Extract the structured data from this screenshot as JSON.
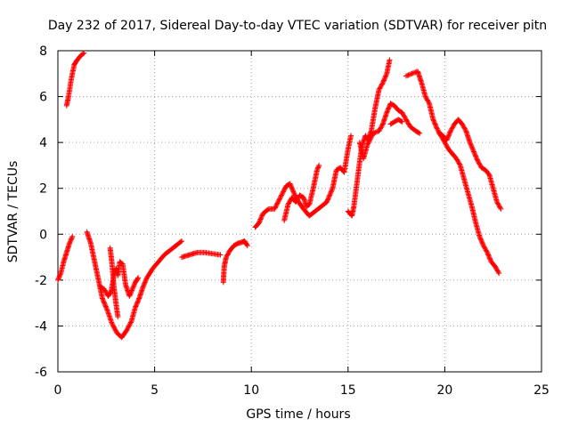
{
  "chart_data": {
    "type": "scatter",
    "title": "Day 232 of 2017, Sidereal Day-to-day VTEC variation (SDTVAR) for receiver pitn",
    "xlabel": "GPS time / hours",
    "ylabel": "SDTVAR / TECUs",
    "xlim": [
      0,
      25
    ],
    "ylim": [
      -6,
      8
    ],
    "xticks": [
      0,
      5,
      10,
      15,
      20,
      25
    ],
    "yticks": [
      -6,
      -4,
      -2,
      0,
      2,
      4,
      6,
      8
    ],
    "grid": true,
    "legend": "none",
    "marker": "plus",
    "color": "#ff0000",
    "segments": [
      [
        [
          0.0,
          -2.0
        ],
        [
          0.15,
          -1.7
        ],
        [
          0.3,
          -1.2
        ],
        [
          0.45,
          -0.8
        ],
        [
          0.6,
          -0.4
        ],
        [
          0.75,
          -0.1
        ]
      ],
      [
        [
          0.45,
          5.6
        ],
        [
          0.55,
          6.0
        ],
        [
          0.7,
          6.8
        ],
        [
          0.85,
          7.4
        ],
        [
          1.0,
          7.6
        ],
        [
          1.2,
          7.8
        ],
        [
          1.35,
          7.9
        ]
      ],
      [
        [
          1.5,
          0.1
        ],
        [
          1.7,
          -0.4
        ],
        [
          1.9,
          -1.2
        ],
        [
          2.1,
          -2.0
        ],
        [
          2.3,
          -2.8
        ],
        [
          2.55,
          -3.3
        ],
        [
          2.8,
          -3.9
        ],
        [
          3.05,
          -4.3
        ],
        [
          3.3,
          -4.5
        ],
        [
          3.55,
          -4.2
        ],
        [
          3.8,
          -3.8
        ],
        [
          4.0,
          -3.2
        ],
        [
          4.2,
          -2.8
        ],
        [
          4.4,
          -2.3
        ],
        [
          4.6,
          -1.9
        ],
        [
          4.9,
          -1.5
        ],
        [
          5.2,
          -1.2
        ],
        [
          5.5,
          -0.9
        ],
        [
          5.8,
          -0.7
        ],
        [
          6.1,
          -0.5
        ],
        [
          6.4,
          -0.3
        ]
      ],
      [
        [
          2.2,
          -2.3
        ],
        [
          2.4,
          -2.4
        ],
        [
          2.6,
          -2.7
        ],
        [
          2.75,
          -2.5
        ],
        [
          2.9,
          -1.8
        ],
        [
          3.0,
          -1.5
        ],
        [
          3.1,
          -1.8
        ],
        [
          3.2,
          -1.2
        ],
        [
          3.35,
          -1.3
        ],
        [
          3.5,
          -2.2
        ],
        [
          3.7,
          -2.7
        ],
        [
          3.85,
          -2.4
        ],
        [
          4.0,
          -2.1
        ],
        [
          4.15,
          -1.9
        ]
      ],
      [
        [
          2.7,
          -0.6
        ],
        [
          2.8,
          -1.3
        ],
        [
          2.9,
          -2.3
        ],
        [
          3.0,
          -3.0
        ],
        [
          3.1,
          -3.6
        ]
      ],
      [
        [
          6.4,
          -1.0
        ],
        [
          6.8,
          -0.9
        ],
        [
          7.2,
          -0.8
        ],
        [
          7.6,
          -0.8
        ],
        [
          8.0,
          -0.85
        ],
        [
          8.4,
          -0.9
        ]
      ],
      [
        [
          8.55,
          -2.1
        ],
        [
          8.6,
          -1.4
        ],
        [
          8.7,
          -1.0
        ],
        [
          8.9,
          -0.7
        ],
        [
          9.1,
          -0.5
        ],
        [
          9.3,
          -0.4
        ],
        [
          9.5,
          -0.35
        ],
        [
          9.65,
          -0.3
        ],
        [
          9.8,
          -0.5
        ]
      ],
      [
        [
          10.2,
          0.3
        ],
        [
          10.4,
          0.5
        ],
        [
          10.6,
          0.9
        ],
        [
          10.9,
          1.1
        ],
        [
          11.2,
          1.1
        ],
        [
          11.5,
          1.6
        ],
        [
          11.8,
          2.1
        ],
        [
          12.0,
          2.2
        ],
        [
          12.2,
          1.8
        ],
        [
          12.45,
          1.4
        ],
        [
          12.7,
          1.1
        ],
        [
          13.0,
          0.8
        ],
        [
          13.3,
          1.0
        ],
        [
          13.6,
          1.2
        ],
        [
          13.9,
          1.4
        ],
        [
          14.2,
          2.0
        ],
        [
          14.4,
          2.8
        ],
        [
          14.6,
          2.9
        ],
        [
          14.8,
          2.7
        ],
        [
          15.0,
          3.7
        ],
        [
          15.15,
          4.3
        ]
      ],
      [
        [
          11.7,
          0.6
        ],
        [
          11.9,
          1.3
        ],
        [
          12.1,
          1.6
        ],
        [
          12.3,
          1.4
        ],
        [
          12.5,
          1.7
        ],
        [
          12.7,
          1.6
        ],
        [
          12.85,
          1.2
        ],
        [
          13.0,
          1.3
        ],
        [
          13.2,
          2.0
        ],
        [
          13.4,
          2.8
        ],
        [
          13.5,
          3.0
        ]
      ],
      [
        [
          15.0,
          1.0
        ],
        [
          15.2,
          0.8
        ],
        [
          15.3,
          1.2
        ],
        [
          15.5,
          2.5
        ],
        [
          15.7,
          3.8
        ],
        [
          15.9,
          4.3
        ],
        [
          16.0,
          4.1
        ],
        [
          16.2,
          4.5
        ],
        [
          16.4,
          5.5
        ],
        [
          16.6,
          6.3
        ],
        [
          16.8,
          6.6
        ],
        [
          17.0,
          7.0
        ],
        [
          17.15,
          7.6
        ]
      ],
      [
        [
          15.6,
          4.0
        ],
        [
          15.8,
          3.3
        ],
        [
          16.0,
          3.9
        ],
        [
          16.3,
          4.4
        ],
        [
          16.6,
          4.5
        ],
        [
          16.8,
          4.8
        ],
        [
          17.0,
          5.3
        ],
        [
          17.2,
          5.7
        ],
        [
          17.4,
          5.6
        ],
        [
          17.6,
          5.4
        ],
        [
          17.8,
          5.3
        ],
        [
          18.0,
          5.0
        ],
        [
          18.2,
          4.7
        ],
        [
          18.5,
          4.5
        ],
        [
          18.7,
          4.4
        ]
      ],
      [
        [
          17.2,
          4.8
        ],
        [
          17.4,
          4.9
        ],
        [
          17.6,
          5.0
        ],
        [
          17.8,
          4.9
        ]
      ],
      [
        [
          18.0,
          6.9
        ],
        [
          18.3,
          7.0
        ],
        [
          18.6,
          7.1
        ],
        [
          18.8,
          6.6
        ],
        [
          19.0,
          6.0
        ],
        [
          19.2,
          5.7
        ],
        [
          19.4,
          5.0
        ],
        [
          19.6,
          4.6
        ],
        [
          19.8,
          4.3
        ],
        [
          20.0,
          4.0
        ],
        [
          20.2,
          3.7
        ],
        [
          20.4,
          3.5
        ],
        [
          20.6,
          3.3
        ],
        [
          20.8,
          3.0
        ],
        [
          21.0,
          2.4
        ],
        [
          21.2,
          1.8
        ],
        [
          21.4,
          1.2
        ],
        [
          21.6,
          0.5
        ],
        [
          21.8,
          -0.1
        ],
        [
          22.0,
          -0.5
        ],
        [
          22.2,
          -0.8
        ],
        [
          22.4,
          -1.2
        ],
        [
          22.6,
          -1.4
        ],
        [
          22.8,
          -1.7
        ]
      ],
      [
        [
          19.7,
          4.4
        ],
        [
          19.9,
          4.3
        ],
        [
          20.1,
          4.1
        ],
        [
          20.3,
          4.5
        ],
        [
          20.5,
          4.8
        ],
        [
          20.7,
          5.0
        ],
        [
          20.9,
          4.8
        ],
        [
          21.1,
          4.5
        ],
        [
          21.3,
          4.0
        ],
        [
          21.5,
          3.6
        ],
        [
          21.7,
          3.2
        ],
        [
          21.9,
          2.9
        ],
        [
          22.1,
          2.8
        ],
        [
          22.3,
          2.6
        ],
        [
          22.5,
          2.0
        ],
        [
          22.7,
          1.4
        ],
        [
          22.9,
          1.1
        ]
      ]
    ]
  }
}
